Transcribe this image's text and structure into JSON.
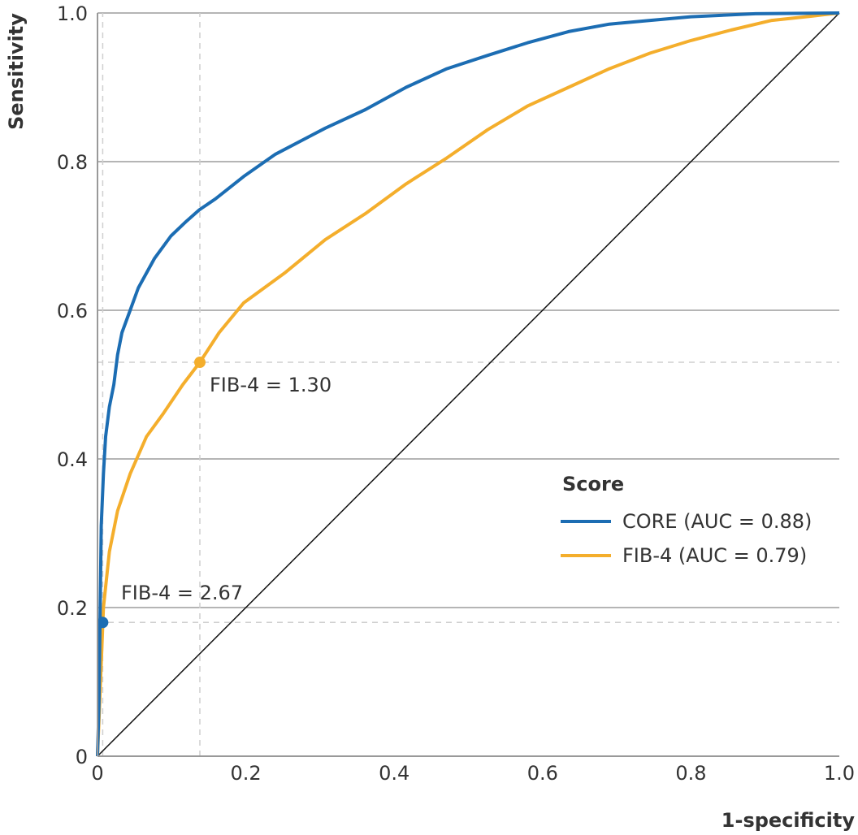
{
  "chart_data": {
    "type": "line",
    "title": "",
    "xlabel": "1-specificity",
    "ylabel": "Sensitivity",
    "xlim": [
      0,
      1
    ],
    "ylim": [
      0,
      1
    ],
    "xticks": [
      0,
      0.2,
      0.4,
      0.6,
      0.8,
      1.0
    ],
    "yticks": [
      0,
      0.2,
      0.4,
      0.6,
      0.8,
      1.0
    ],
    "xtick_labels": [
      "0",
      "0.2",
      "0.4",
      "0.6",
      "0.8",
      "1.0"
    ],
    "ytick_labels": [
      "0",
      "0.2",
      "0.4",
      "0.6",
      "0.8",
      "1.0"
    ],
    "grid": "horizontal",
    "legend": {
      "title": "Score",
      "placement": "bottom-right"
    },
    "reference_line": {
      "x": [
        0,
        1
      ],
      "y": [
        0,
        1
      ],
      "color": "#111111"
    },
    "series": [
      {
        "name": "CORE (AUC = 0.88)",
        "color": "#1c6db3",
        "x": [
          0,
          0.002,
          0.005,
          0.008,
          0.011,
          0.016,
          0.022,
          0.027,
          0.033,
          0.044,
          0.055,
          0.077,
          0.099,
          0.12,
          0.137,
          0.159,
          0.197,
          0.24,
          0.307,
          0.361,
          0.416,
          0.471,
          0.526,
          0.58,
          0.635,
          0.69,
          0.745,
          0.8,
          0.887,
          1.0
        ],
        "y": [
          0,
          0.07,
          0.31,
          0.38,
          0.43,
          0.47,
          0.5,
          0.54,
          0.57,
          0.6,
          0.63,
          0.67,
          0.7,
          0.72,
          0.735,
          0.75,
          0.78,
          0.81,
          0.845,
          0.87,
          0.9,
          0.925,
          0.943,
          0.96,
          0.975,
          0.985,
          0.99,
          0.995,
          0.999,
          1.0
        ]
      },
      {
        "name": "FIB-4 (AUC = 0.79)",
        "color": "#f4ae2c",
        "x": [
          0,
          0.004,
          0.008,
          0.016,
          0.027,
          0.044,
          0.066,
          0.088,
          0.115,
          0.138,
          0.164,
          0.197,
          0.252,
          0.307,
          0.361,
          0.416,
          0.471,
          0.526,
          0.58,
          0.635,
          0.69,
          0.745,
          0.8,
          0.854,
          0.909,
          0.964,
          1.0
        ],
        "y": [
          0,
          0.1,
          0.2,
          0.275,
          0.33,
          0.38,
          0.43,
          0.46,
          0.5,
          0.53,
          0.57,
          0.61,
          0.65,
          0.695,
          0.73,
          0.77,
          0.805,
          0.843,
          0.875,
          0.9,
          0.925,
          0.946,
          0.963,
          0.977,
          0.99,
          0.996,
          1.0
        ]
      }
    ],
    "annotations": [
      {
        "label": "FIB-4 = 1.30",
        "x": 0.138,
        "y": 0.53,
        "color": "#f4ae2c"
      },
      {
        "label": "FIB-4 = 2.67",
        "x": 0.007,
        "y": 0.18,
        "color": "#1c6db3"
      }
    ]
  }
}
